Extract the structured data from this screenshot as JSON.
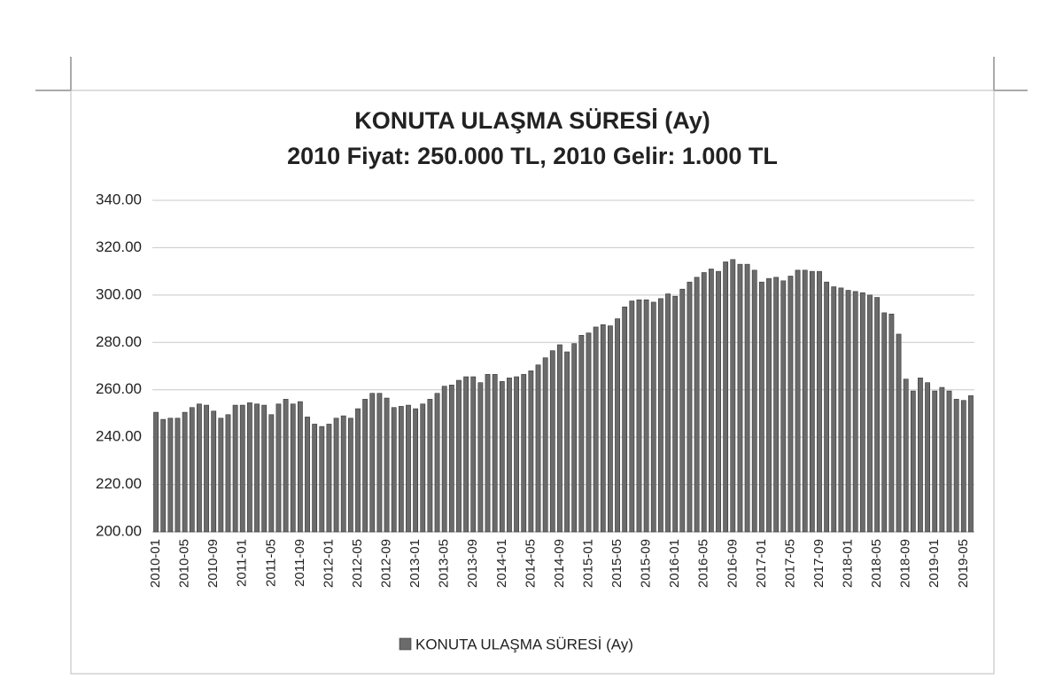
{
  "chart_data": {
    "type": "bar",
    "title": "KONUTA ULAŞMA SÜRESİ (Ay)",
    "subtitle": "2010 Fiyat: 250.000 TL, 2010 Gelir: 1.000 TL",
    "categories": [
      "2010-01",
      null,
      null,
      null,
      "2010-05",
      null,
      null,
      null,
      "2010-09",
      null,
      null,
      null,
      "2011-01",
      null,
      null,
      null,
      "2011-05",
      null,
      null,
      null,
      "2011-09",
      null,
      null,
      null,
      "2012-01",
      null,
      null,
      null,
      "2012-05",
      null,
      null,
      null,
      "2012-09",
      null,
      null,
      null,
      "2013-01",
      null,
      null,
      null,
      "2013-05",
      null,
      null,
      null,
      "2013-09",
      null,
      null,
      null,
      "2014-01",
      null,
      null,
      null,
      "2014-05",
      null,
      null,
      null,
      "2014-09",
      null,
      null,
      null,
      "2015-01",
      null,
      null,
      null,
      "2015-05",
      null,
      null,
      null,
      "2015-09",
      null,
      null,
      null,
      "2016-01",
      null,
      null,
      null,
      "2016-05",
      null,
      null,
      null,
      "2016-09",
      null,
      null,
      null,
      "2017-01",
      null,
      null,
      null,
      "2017-05",
      null,
      null,
      null,
      "2017-09",
      null,
      null,
      null,
      "2018-01",
      null,
      null,
      null,
      "2018-05",
      null,
      null,
      null,
      "2018-09",
      null,
      null,
      null,
      "2019-01",
      null,
      null,
      null,
      "2019-05",
      null
    ],
    "series": [
      {
        "name": "KONUTA ULAŞMA SÜRESİ (Ay)",
        "color": "#6b6b6b",
        "values": [
          250.5,
          247.5,
          248,
          248,
          250.5,
          252.5,
          254,
          253.5,
          251,
          248,
          249.5,
          253.5,
          253.5,
          254.5,
          254,
          253.5,
          249.5,
          254,
          256,
          254,
          255,
          248.5,
          245.5,
          244.5,
          245.5,
          248,
          249,
          248,
          252,
          256,
          258.5,
          258.5,
          256.5,
          252.5,
          253,
          253.5,
          252,
          254,
          256,
          258.5,
          261.5,
          262,
          264,
          265.5,
          265.5,
          263,
          266.5,
          266.5,
          263.5,
          265,
          265.5,
          266.5,
          268,
          270.5,
          273.5,
          276.5,
          279,
          276,
          279.5,
          283,
          284,
          286.5,
          287.5,
          287,
          290,
          295,
          297.5,
          298,
          298,
          297,
          298.5,
          300.5,
          299.5,
          302.5,
          305.5,
          307.5,
          309.5,
          311,
          310,
          314,
          315,
          313,
          313,
          310.5,
          305.5,
          307,
          307.5,
          306,
          308,
          310.5,
          310.5,
          310,
          310,
          305.5,
          303.5,
          303,
          302,
          301.5,
          301,
          300,
          299,
          292.5,
          292,
          283.5,
          264.5,
          259.5,
          265,
          263,
          259.5,
          261,
          259.5,
          256,
          255.5,
          257.5
        ]
      }
    ],
    "ylim": [
      200,
      340
    ],
    "yticks": [
      {
        "value": 200,
        "label": "200.00"
      },
      {
        "value": 220,
        "label": "220.00"
      },
      {
        "value": 240,
        "label": "240.00"
      },
      {
        "value": 260,
        "label": "260.00"
      },
      {
        "value": 280,
        "label": "280.00"
      },
      {
        "value": 300,
        "label": "300.00"
      },
      {
        "value": 320,
        "label": "320.00"
      },
      {
        "value": 340,
        "label": "340.00"
      }
    ],
    "grid": true,
    "legend": "bottom"
  }
}
